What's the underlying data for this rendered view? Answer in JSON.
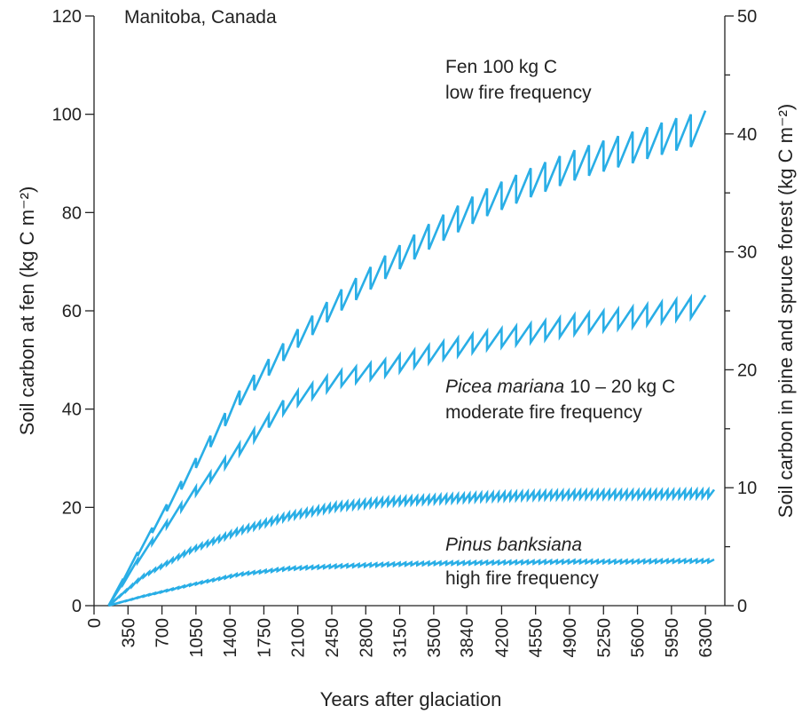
{
  "chart_data": {
    "type": "line",
    "region_label": "Manitoba, Canada",
    "xlabel": "Years after glaciation",
    "ylabel_left": "Soil carbon at fen (kg C m⁻²)",
    "ylabel_right": "Soil carbon in pine and spruce forest (kg C m⁻²)",
    "xlim": [
      0,
      6500
    ],
    "ylim_left": [
      0,
      120
    ],
    "ylim_right": [
      0,
      50
    ],
    "x_ticks": [
      0,
      350,
      700,
      1050,
      1400,
      1750,
      2100,
      2450,
      2800,
      3150,
      3500,
      3840,
      4200,
      4550,
      4900,
      5250,
      5600,
      5950,
      6300
    ],
    "y_ticks_left": [
      0,
      20,
      40,
      60,
      80,
      100,
      120
    ],
    "y_ticks_right": [
      0,
      10,
      20,
      30,
      40,
      50
    ],
    "series": [
      {
        "name": "Fen 100 kg C",
        "axis": "left",
        "color": "#29aee6",
        "fire_interval_years": 150,
        "start_year": 150,
        "x": [
          150,
          500,
          1000,
          1500,
          2000,
          2500,
          3000,
          3500,
          4000,
          4500,
          5000,
          5500,
          6000,
          6400
        ],
        "y": [
          0,
          12.5,
          28,
          43,
          53.5,
          62.5,
          70,
          77,
          83,
          87.5,
          91.5,
          94.5,
          97.5,
          99.5
        ]
      },
      {
        "name": "Picea mariana 10 – 20 kg C",
        "axis": "right",
        "color": "#29aee6",
        "fire_interval_years": 150,
        "start_year": 150,
        "x": [
          150,
          500,
          1000,
          1500,
          2000,
          2500,
          3000,
          3500,
          4000,
          4500,
          5000,
          5500,
          6000,
          6400
        ],
        "y": [
          0,
          4.5,
          9.5,
          13.5,
          17.5,
          19.5,
          20.5,
          21.8,
          22.8,
          23.5,
          24.3,
          24.8,
          25.5,
          26
        ]
      },
      {
        "name": "Pinus banksiana",
        "axis": "left",
        "color": "#29aee6",
        "fire_interval_years": 60,
        "start_year": 150,
        "x": [
          150,
          500,
          1000,
          1500,
          2000,
          2500,
          3000,
          3500,
          4000,
          4500,
          5000,
          5500,
          6000,
          6400
        ],
        "y": [
          0,
          6,
          11.5,
          15.5,
          18.5,
          20.5,
          21.5,
          22,
          22.5,
          22.8,
          23,
          23,
          23.1,
          23.2
        ]
      },
      {
        "name": "high fire frequency (Pinus banksiana, right axis)",
        "axis": "right",
        "color": "#29aee6",
        "fire_interval_years": 60,
        "start_year": 150,
        "x": [
          150,
          500,
          1000,
          1500,
          2000,
          2500,
          3000,
          3500,
          4000,
          4500,
          5000,
          5500,
          6000,
          6400
        ],
        "y": [
          0,
          0.8,
          1.8,
          2.7,
          3.2,
          3.4,
          3.55,
          3.65,
          3.7,
          3.75,
          3.8,
          3.8,
          3.85,
          3.85
        ]
      }
    ],
    "annotations": [
      {
        "text": "Fen 100 kg C"
      },
      {
        "text": "low fire frequency"
      },
      {
        "text_italic": "Picea mariana",
        "text": " 10 – 20 kg C"
      },
      {
        "text": "moderate fire frequency"
      },
      {
        "text_italic": "Pinus banksiana"
      },
      {
        "text": "high fire frequency"
      }
    ]
  }
}
